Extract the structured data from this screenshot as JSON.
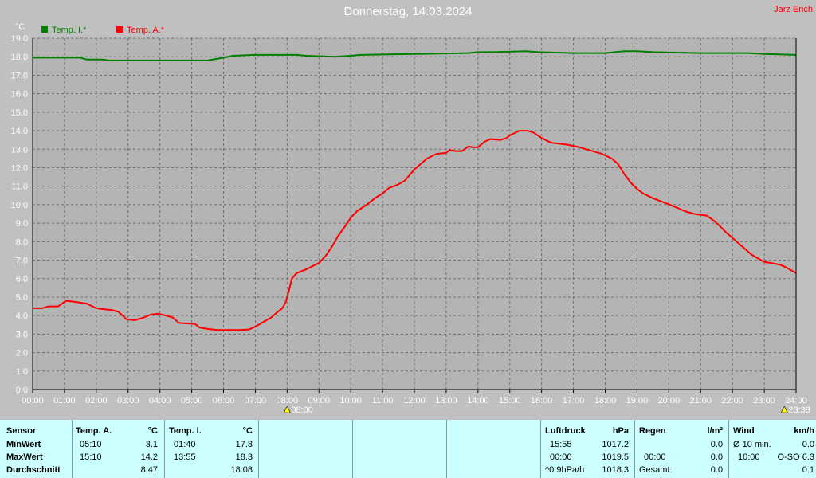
{
  "title": "Donnerstag, 14.03.2024",
  "author": "Jarz Erich",
  "chart_data": {
    "type": "line",
    "ylabel": "°C",
    "ylim": [
      0,
      19
    ],
    "xlim": [
      0,
      24
    ],
    "grid": true,
    "legend_position": "top-left",
    "x_ticks": [
      "00:00",
      "01:00",
      "02:00",
      "03:00",
      "04:00",
      "05:00",
      "06:00",
      "07:00",
      "08:00",
      "09:00",
      "10:00",
      "11:00",
      "12:00",
      "13:00",
      "14:00",
      "15:00",
      "16:00",
      "17:00",
      "18:00",
      "19:00",
      "20:00",
      "21:00",
      "22:00",
      "23:00",
      "24:00"
    ],
    "y_ticks": [
      "0.0",
      "1.0",
      "2.0",
      "3.0",
      "4.0",
      "5.0",
      "6.0",
      "7.0",
      "8.0",
      "9.0",
      "10.0",
      "11.0",
      "12.0",
      "13.0",
      "14.0",
      "15.0",
      "16.0",
      "17.0",
      "18.0",
      "19.0"
    ],
    "markers": [
      {
        "hour": 8.0,
        "label": "08:00"
      },
      {
        "hour": 23.63,
        "label": "23:38"
      }
    ],
    "series": [
      {
        "name": "Temp. I.*",
        "color": "#008000",
        "points": [
          [
            0,
            17.95
          ],
          [
            1.5,
            17.95
          ],
          [
            1.7,
            17.85
          ],
          [
            2.2,
            17.85
          ],
          [
            2.4,
            17.8
          ],
          [
            4.5,
            17.8
          ],
          [
            5.5,
            17.8
          ],
          [
            6.0,
            17.95
          ],
          [
            6.3,
            18.05
          ],
          [
            7.0,
            18.1
          ],
          [
            8.3,
            18.1
          ],
          [
            8.6,
            18.05
          ],
          [
            9.5,
            18.0
          ],
          [
            10.0,
            18.05
          ],
          [
            10.3,
            18.1
          ],
          [
            12.0,
            18.15
          ],
          [
            13.7,
            18.2
          ],
          [
            14.0,
            18.25
          ],
          [
            14.5,
            18.25
          ],
          [
            15.5,
            18.3
          ],
          [
            15.9,
            18.25
          ],
          [
            17.0,
            18.2
          ],
          [
            18.0,
            18.2
          ],
          [
            18.6,
            18.3
          ],
          [
            19.0,
            18.3
          ],
          [
            19.5,
            18.25
          ],
          [
            21.0,
            18.2
          ],
          [
            22.5,
            18.2
          ],
          [
            23.0,
            18.15
          ],
          [
            24.0,
            18.1
          ]
        ]
      },
      {
        "name": "Temp. A.*",
        "color": "#ff0000",
        "points": [
          [
            0,
            4.4
          ],
          [
            0.3,
            4.4
          ],
          [
            0.5,
            4.5
          ],
          [
            0.8,
            4.5
          ],
          [
            1.05,
            4.8
          ],
          [
            1.3,
            4.75
          ],
          [
            1.7,
            4.65
          ],
          [
            2.0,
            4.4
          ],
          [
            2.2,
            4.35
          ],
          [
            2.5,
            4.3
          ],
          [
            2.7,
            4.2
          ],
          [
            2.95,
            3.8
          ],
          [
            3.2,
            3.75
          ],
          [
            3.5,
            3.9
          ],
          [
            3.7,
            4.05
          ],
          [
            3.95,
            4.1
          ],
          [
            4.2,
            4.0
          ],
          [
            4.4,
            3.9
          ],
          [
            4.6,
            3.6
          ],
          [
            5.1,
            3.55
          ],
          [
            5.25,
            3.35
          ],
          [
            5.5,
            3.28
          ],
          [
            5.8,
            3.22
          ],
          [
            6.5,
            3.22
          ],
          [
            6.8,
            3.25
          ],
          [
            7.0,
            3.4
          ],
          [
            7.2,
            3.6
          ],
          [
            7.5,
            3.9
          ],
          [
            7.7,
            4.2
          ],
          [
            7.85,
            4.4
          ],
          [
            7.95,
            4.7
          ],
          [
            8.05,
            5.3
          ],
          [
            8.15,
            6.0
          ],
          [
            8.3,
            6.3
          ],
          [
            8.6,
            6.5
          ],
          [
            9.0,
            6.85
          ],
          [
            9.2,
            7.2
          ],
          [
            9.4,
            7.7
          ],
          [
            9.6,
            8.3
          ],
          [
            9.85,
            8.9
          ],
          [
            10.0,
            9.3
          ],
          [
            10.2,
            9.65
          ],
          [
            10.5,
            10.0
          ],
          [
            10.8,
            10.4
          ],
          [
            11.0,
            10.6
          ],
          [
            11.2,
            10.9
          ],
          [
            11.5,
            11.1
          ],
          [
            11.7,
            11.3
          ],
          [
            11.85,
            11.6
          ],
          [
            12.0,
            11.9
          ],
          [
            12.2,
            12.2
          ],
          [
            12.4,
            12.5
          ],
          [
            12.7,
            12.75
          ],
          [
            13.0,
            12.8
          ],
          [
            13.1,
            12.95
          ],
          [
            13.3,
            12.9
          ],
          [
            13.5,
            12.9
          ],
          [
            13.7,
            13.15
          ],
          [
            13.85,
            13.1
          ],
          [
            14.0,
            13.1
          ],
          [
            14.2,
            13.4
          ],
          [
            14.4,
            13.55
          ],
          [
            14.7,
            13.5
          ],
          [
            14.9,
            13.6
          ],
          [
            15.0,
            13.75
          ],
          [
            15.3,
            14.0
          ],
          [
            15.55,
            14.0
          ],
          [
            15.75,
            13.9
          ],
          [
            16.0,
            13.6
          ],
          [
            16.3,
            13.35
          ],
          [
            16.8,
            13.25
          ],
          [
            17.2,
            13.1
          ],
          [
            17.5,
            12.95
          ],
          [
            17.9,
            12.75
          ],
          [
            18.2,
            12.5
          ],
          [
            18.4,
            12.2
          ],
          [
            18.6,
            11.65
          ],
          [
            18.8,
            11.2
          ],
          [
            19.0,
            10.85
          ],
          [
            19.2,
            10.6
          ],
          [
            19.5,
            10.35
          ],
          [
            19.8,
            10.15
          ],
          [
            20.1,
            9.95
          ],
          [
            20.3,
            9.8
          ],
          [
            20.5,
            9.65
          ],
          [
            20.8,
            9.5
          ],
          [
            21.2,
            9.4
          ],
          [
            21.4,
            9.15
          ],
          [
            21.6,
            8.85
          ],
          [
            21.8,
            8.5
          ],
          [
            22.0,
            8.2
          ],
          [
            22.2,
            7.9
          ],
          [
            22.4,
            7.6
          ],
          [
            22.6,
            7.3
          ],
          [
            22.8,
            7.1
          ],
          [
            23.0,
            6.9
          ],
          [
            23.2,
            6.85
          ],
          [
            23.5,
            6.75
          ],
          [
            23.7,
            6.6
          ],
          [
            23.9,
            6.4
          ],
          [
            24.0,
            6.3
          ]
        ]
      }
    ]
  },
  "table": {
    "sensor": {
      "header": "Sensor",
      "rows": [
        "MinWert",
        "MaxWert",
        "Durchschnitt"
      ]
    },
    "temp_a": {
      "header": "Temp. A.",
      "unit": "°C",
      "times": [
        "05:10",
        "15:10",
        ""
      ],
      "values": [
        "3.1",
        "14.2",
        "8.47"
      ]
    },
    "temp_i": {
      "header": "Temp. I.",
      "unit": "°C",
      "times": [
        "01:40",
        "13:55",
        ""
      ],
      "values": [
        "17.8",
        "18.3",
        "18.08"
      ]
    },
    "luftdruck": {
      "header": "Luftdruck",
      "unit": "hPa",
      "times": [
        "15:55",
        "00:00",
        "^0.9hPa/h"
      ],
      "values": [
        "1017.2",
        "1019.5",
        "1018.3"
      ]
    },
    "regen": {
      "header": "Regen",
      "unit": "l/m²",
      "labels": [
        "",
        "00:00",
        "Gesamt:"
      ],
      "values": [
        "0.0",
        "0.0",
        "0.0"
      ]
    },
    "wind": {
      "header": "Wind",
      "unit": "km/h",
      "labels": [
        "Ø 10 min.",
        "10:00",
        ""
      ],
      "values": [
        "0.0",
        "O-SO 6.3",
        "0.1"
      ]
    }
  }
}
